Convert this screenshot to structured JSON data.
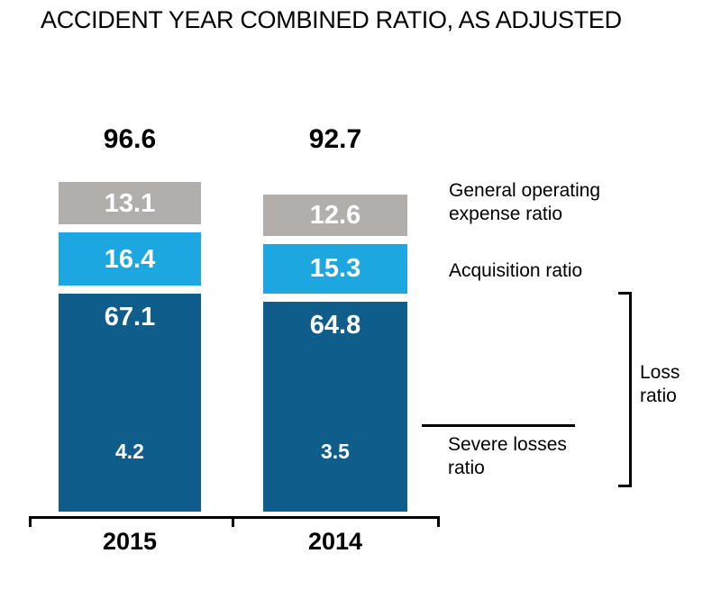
{
  "title": "ACCIDENT YEAR COMBINED RATIO, AS ADJUSTED",
  "chart_data": {
    "type": "bar",
    "stacked": true,
    "title": "ACCIDENT YEAR COMBINED RATIO, AS ADJUSTED",
    "categories": [
      "2015",
      "2014"
    ],
    "totals": [
      96.6,
      92.7
    ],
    "series": [
      {
        "name": "General operating expense ratio",
        "key": "general-operating-expense",
        "values": [
          13.1,
          12.6
        ],
        "color": "#b2aeab"
      },
      {
        "name": "Acquisition ratio",
        "key": "acquisition",
        "values": [
          16.4,
          15.3
        ],
        "color": "#1da7e0"
      },
      {
        "name": "Loss ratio",
        "key": "loss",
        "values": [
          67.1,
          64.8
        ],
        "color": "#0e5d8b"
      }
    ],
    "sub_labels": {
      "name": "Severe losses ratio",
      "values": [
        4.2,
        3.5
      ]
    },
    "value_label_color": "#ffffff",
    "total_label_color": "#000000",
    "axis_color": "#000000",
    "grid": false,
    "legend_position": "right-annotations"
  },
  "annotations": {
    "general_operating_expense": "General operating\nexpense ratio",
    "acquisition": "Acquisition ratio",
    "loss": "Loss\nratio",
    "severe_losses": "Severe losses\nratio"
  }
}
